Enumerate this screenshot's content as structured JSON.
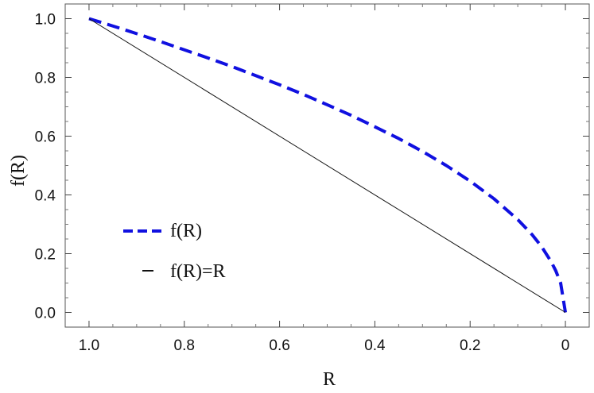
{
  "chart_data": {
    "type": "line",
    "xlabel": "R",
    "ylabel": "f(R)",
    "xlim": [
      1.05,
      -0.05
    ],
    "ylim": [
      -0.05,
      1.05
    ],
    "x_reversed": true,
    "x_ticks": [
      1.0,
      0.8,
      0.6,
      0.4,
      0.2,
      0
    ],
    "x_tick_labels": [
      "1.0",
      "0.8",
      "0.6",
      "0.4",
      "0.2",
      "0"
    ],
    "y_ticks": [
      0.0,
      0.2,
      0.4,
      0.6,
      0.8,
      1.0
    ],
    "y_tick_labels": [
      "0.0",
      "0.2",
      "0.4",
      "0.6",
      "0.8",
      "1.0"
    ],
    "grid": false,
    "legend_position": "left-bottom",
    "series": [
      {
        "name": "f(R)",
        "color": "#1010e0",
        "style": "dashed",
        "x": [
          1.0,
          0.95,
          0.9,
          0.85,
          0.8,
          0.75,
          0.7,
          0.65,
          0.6,
          0.55,
          0.5,
          0.45,
          0.4,
          0.35,
          0.3,
          0.25,
          0.2,
          0.15,
          0.1,
          0.07,
          0.05,
          0.03,
          0.02,
          0.01,
          0.0
        ],
        "y": [
          1.0,
          0.975,
          0.949,
          0.922,
          0.894,
          0.866,
          0.837,
          0.806,
          0.775,
          0.742,
          0.707,
          0.671,
          0.632,
          0.592,
          0.548,
          0.5,
          0.447,
          0.387,
          0.316,
          0.265,
          0.224,
          0.173,
          0.141,
          0.1,
          0.0
        ]
      },
      {
        "name": "f(R)=R",
        "color": "#111111",
        "style": "solid",
        "x": [
          1.0,
          0.0
        ],
        "y": [
          1.0,
          0.0
        ]
      }
    ]
  }
}
